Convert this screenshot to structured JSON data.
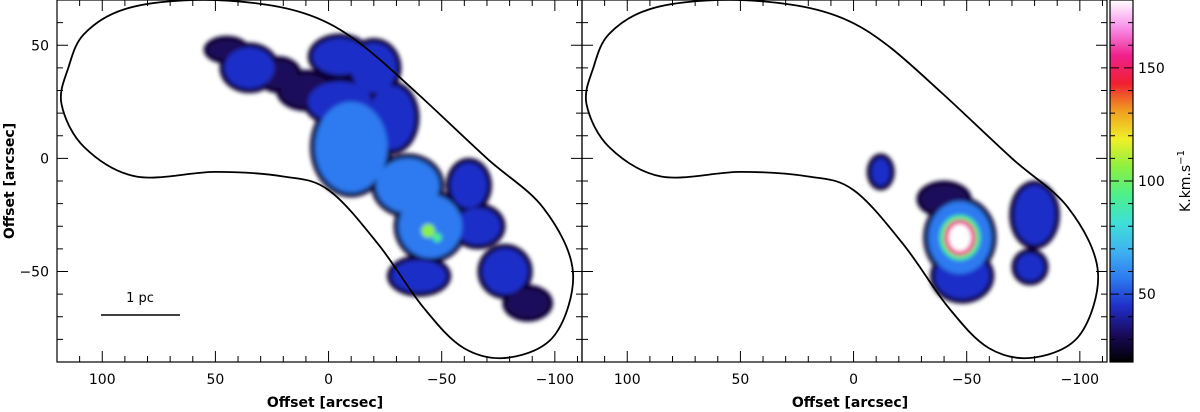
{
  "chart_data": {
    "type": "heatmap",
    "panels": [
      {
        "id": "left",
        "xlabel": "Offset [arcsec]",
        "ylabel": "Offset [arcsec]",
        "xlim": [
          120,
          -112
        ],
        "ylim": [
          -90,
          70
        ],
        "x_ticks": [
          100,
          50,
          0,
          -50,
          -100
        ],
        "x_tick_labels": [
          "100",
          "50",
          "0",
          "−50",
          "−100"
        ],
        "y_ticks": [
          50,
          0,
          -50
        ],
        "y_tick_labels": [
          "50",
          "0",
          "−50"
        ],
        "annotation": "1 pc",
        "emission_regions": [
          {
            "x": 45,
            "y": 48,
            "rx": 8,
            "ry": 4,
            "level": 30
          },
          {
            "x": 35,
            "y": 40,
            "rx": 11,
            "ry": 9,
            "level": 50
          },
          {
            "x": 22,
            "y": 37,
            "rx": 8,
            "ry": 6,
            "level": 35
          },
          {
            "x": 10,
            "y": 30,
            "rx": 11,
            "ry": 7,
            "level": 35
          },
          {
            "x": -5,
            "y": 25,
            "rx": 14,
            "ry": 9,
            "level": 40
          },
          {
            "x": -5,
            "y": 45,
            "rx": 12,
            "ry": 8,
            "level": 45
          },
          {
            "x": -20,
            "y": 40,
            "rx": 10,
            "ry": 11,
            "level": 45
          },
          {
            "x": -10,
            "y": 5,
            "rx": 16,
            "ry": 20,
            "level": 55
          },
          {
            "x": -28,
            "y": 18,
            "rx": 10,
            "ry": 14,
            "level": 50
          },
          {
            "x": -35,
            "y": -12,
            "rx": 14,
            "ry": 12,
            "level": 55
          },
          {
            "x": -45,
            "y": -30,
            "rx": 14,
            "ry": 14,
            "level": 60
          },
          {
            "x": -40,
            "y": -52,
            "rx": 12,
            "ry": 7,
            "level": 45
          },
          {
            "x": -62,
            "y": -12,
            "rx": 8,
            "ry": 10,
            "level": 50
          },
          {
            "x": -66,
            "y": -30,
            "rx": 10,
            "ry": 8,
            "level": 40
          },
          {
            "x": -78,
            "y": -50,
            "rx": 10,
            "ry": 10,
            "level": 50
          },
          {
            "x": -88,
            "y": -64,
            "rx": 9,
            "ry": 6,
            "level": 30
          },
          {
            "x": -44,
            "y": -32,
            "rx": 3,
            "ry": 3,
            "level": 100
          },
          {
            "x": -48,
            "y": -35,
            "rx": 2,
            "ry": 2,
            "level": 90
          }
        ]
      },
      {
        "id": "right",
        "xlabel": "Offset [arcsec]",
        "xlim": [
          120,
          -112
        ],
        "ylim": [
          -90,
          70
        ],
        "x_ticks": [
          100,
          50,
          0,
          -50,
          -100
        ],
        "x_tick_labels": [
          "100",
          "50",
          "0",
          "−50",
          "−100"
        ],
        "emission_regions": [
          {
            "x": -12,
            "y": -6,
            "rx": 4,
            "ry": 6,
            "level": 45
          },
          {
            "x": -40,
            "y": -18,
            "rx": 10,
            "ry": 6,
            "level": 30
          },
          {
            "x": -47,
            "y": -35,
            "rx": 14,
            "ry": 16,
            "level": 60
          },
          {
            "x": -48,
            "y": -52,
            "rx": 12,
            "ry": 10,
            "level": 50
          },
          {
            "x": -47,
            "y": -35,
            "rx": 9,
            "ry": 10,
            "level": 95
          },
          {
            "x": -47,
            "y": -35,
            "rx": 7,
            "ry": 8,
            "level": 150
          },
          {
            "x": -47,
            "y": -35,
            "rx": 5,
            "ry": 6,
            "level": 180
          },
          {
            "x": -80,
            "y": -25,
            "rx": 9,
            "ry": 13,
            "level": 50
          },
          {
            "x": -78,
            "y": -48,
            "rx": 6,
            "ry": 6,
            "level": 45
          }
        ]
      }
    ],
    "boundary_outline": [
      [
        115,
        40
      ],
      [
        108,
        55
      ],
      [
        90,
        66
      ],
      [
        60,
        70
      ],
      [
        28,
        68
      ],
      [
        5,
        62
      ],
      [
        -15,
        50
      ],
      [
        -40,
        28
      ],
      [
        -70,
        0
      ],
      [
        -95,
        -22
      ],
      [
        -108,
        -50
      ],
      [
        -100,
        -78
      ],
      [
        -80,
        -88
      ],
      [
        -60,
        -84
      ],
      [
        -42,
        -66
      ],
      [
        -22,
        -38
      ],
      [
        0,
        -14
      ],
      [
        20,
        -8
      ],
      [
        50,
        -6
      ],
      [
        85,
        -8
      ],
      [
        108,
        5
      ],
      [
        118,
        24
      ]
    ],
    "colorbar": {
      "label": "K.km.s",
      "label_sup": "−1",
      "range": [
        20,
        180
      ],
      "ticks": [
        50,
        100,
        150
      ],
      "colors": [
        "#000000",
        "#1a0a5c",
        "#1f2fc8",
        "#2e7af0",
        "#3fb3f0",
        "#3fe0d8",
        "#4cf08a",
        "#8cf040",
        "#f0f028",
        "#f0a020",
        "#f02030",
        "#f0208c",
        "#f890e8",
        "#ffffff"
      ]
    }
  }
}
